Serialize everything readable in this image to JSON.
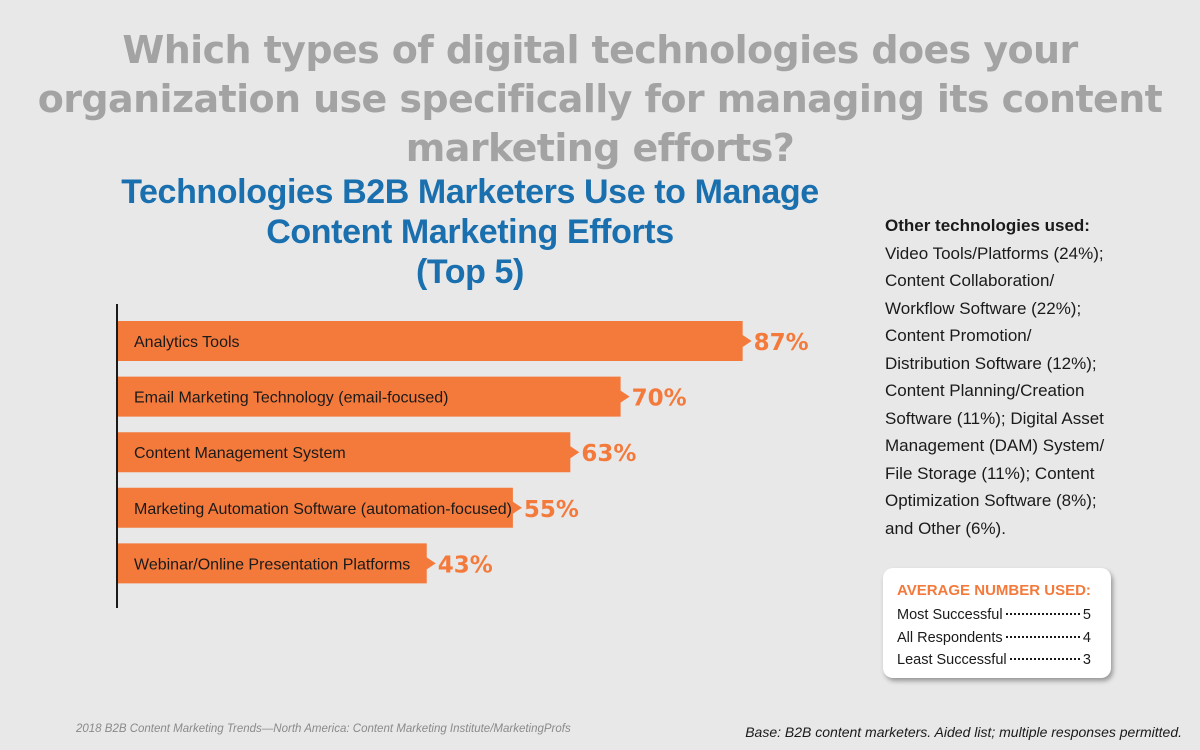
{
  "question": "Which types of digital technologies does your organization use specifically for managing its content marketing efforts?",
  "chart_data": {
    "type": "bar",
    "orientation": "horizontal",
    "title_lines": [
      "Technologies B2B Marketers Use to Manage",
      "Content Marketing Efforts",
      "(Top 5)"
    ],
    "categories": [
      "Analytics Tools",
      "Email Marketing Technology (email-focused)",
      "Content Management System",
      "Marketing Automation Software (automation-focused)",
      "Webinar/Online Presentation Platforms"
    ],
    "values": [
      87,
      70,
      63,
      55,
      43
    ],
    "value_labels": [
      "87%",
      "70%",
      "63%",
      "55%",
      "43%"
    ],
    "unit": "%",
    "xlim": [
      0,
      100
    ],
    "bar_color": "#f47a3c",
    "label_color": "#f47a3c"
  },
  "other_technologies": {
    "heading": "Other technologies used:",
    "lines": [
      "Video Tools/Platforms (24%);",
      "Content Collaboration/",
      "Workflow Software (22%);",
      "Content Promotion/",
      "Distribution Software (12%);",
      "Content Planning/Creation",
      "Software (11%); Digital Asset",
      "Management (DAM) System/",
      "File Storage (11%); Content",
      "Optimization Software (8%);",
      "and Other (6%)."
    ]
  },
  "average_box": {
    "title": "AVERAGE NUMBER USED:",
    "rows": [
      {
        "label": "Most Successful",
        "value": "5"
      },
      {
        "label": "All Respondents",
        "value": "4"
      },
      {
        "label": "Least Successful",
        "value": "3"
      }
    ]
  },
  "footer": {
    "source": "2018 B2B Content Marketing Trends—North America: Content Marketing Institute/MarketingProfs",
    "base": "Base: B2B content marketers. Aided list; multiple responses permitted."
  },
  "colors": {
    "background": "#e8e8e8",
    "question": "#a3a3a3",
    "title": "#1a6fae",
    "accent": "#f47a3c"
  }
}
